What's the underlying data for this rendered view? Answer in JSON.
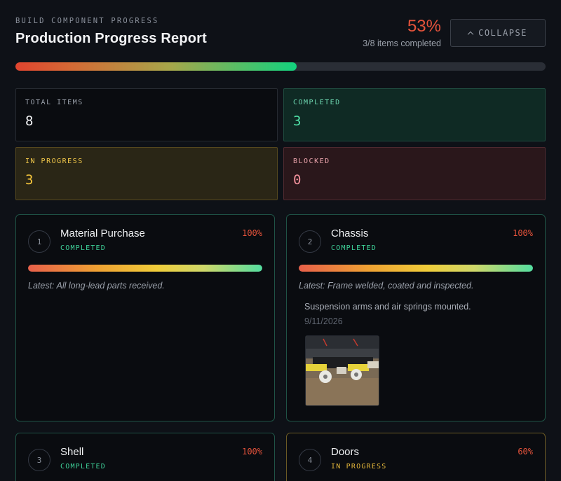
{
  "header": {
    "eyebrow": "BUILD COMPONENT PROGRESS",
    "title": "Production Progress Report",
    "percent_label": "53%",
    "items_completed": "3/8 items completed",
    "collapse_label": "COLLAPSE",
    "progress_fraction": 0.53
  },
  "stats": {
    "total": {
      "label": "TOTAL ITEMS",
      "value": "8"
    },
    "completed": {
      "label": "COMPLETED",
      "value": "3"
    },
    "in_progress": {
      "label": "IN PROGRESS",
      "value": "3"
    },
    "blocked": {
      "label": "BLOCKED",
      "value": "0"
    }
  },
  "cards": [
    {
      "number": "1",
      "title": "Material Purchase",
      "status": "COMPLETED",
      "percent_label": "100%",
      "progress": 1.0,
      "latest": "Latest: All long-lead parts received."
    },
    {
      "number": "2",
      "title": "Chassis",
      "status": "COMPLETED",
      "percent_label": "100%",
      "progress": 1.0,
      "latest": "Latest: Frame welded, coated and inspected.",
      "update_text": "Suspension arms and air springs mounted.",
      "update_date": "9/11/2026"
    },
    {
      "number": "3",
      "title": "Shell",
      "status": "COMPLETED",
      "percent_label": "100%",
      "progress": 1.0
    },
    {
      "number": "4",
      "title": "Doors",
      "status": "IN PROGRESS",
      "percent_label": "60%",
      "progress": 0.6
    }
  ],
  "colors": {
    "accent_red": "#e5533b",
    "completed_green": "#3fd39a",
    "in_progress_yellow": "#e5b73a",
    "blocked_pink": "#ef8f9a"
  },
  "icons": {
    "collapse": "chevron-up-icon"
  }
}
